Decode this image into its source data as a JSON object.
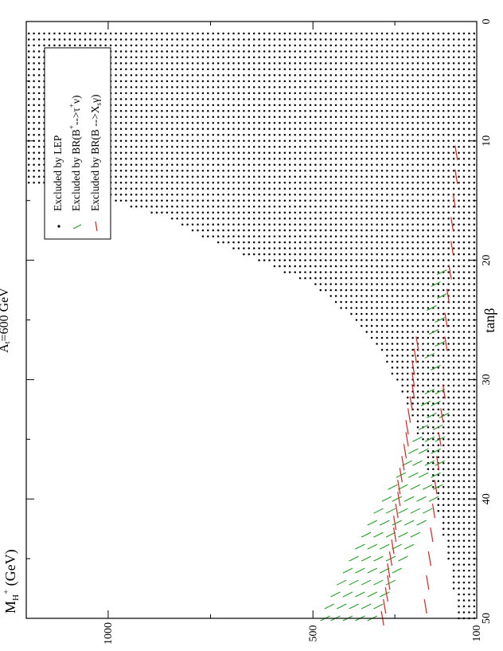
{
  "chart_data": {
    "type": "scatter",
    "orientation": "rotated-90-counterclockwise",
    "title_parts": {
      "main": "A",
      "sub": "t",
      "rest": "=600 GeV"
    },
    "xlabel": "tanβ",
    "ylabel_parts": {
      "main": "M",
      "sub": "H",
      "sup": "+",
      "rest": " (GeV)"
    },
    "xlim": [
      0,
      50
    ],
    "ylim": [
      100,
      1200
    ],
    "x_ticks": [
      "0",
      "10",
      "20",
      "30",
      "40",
      "50"
    ],
    "y_ticks": [
      "100",
      "500",
      "1000"
    ],
    "grid": false,
    "legend_position": "top-left",
    "legend": [
      {
        "key": "lep",
        "text": "Excluded by LEP"
      },
      {
        "key": "taunu",
        "text": "Excluded by BR(B",
        "sup": "+",
        "mid": "-->τ",
        "sup2": "+",
        "end": "ν)"
      },
      {
        "key": "xsgamma",
        "text": "Excluded by BR(B -->X",
        "sub": "s",
        "end": "γ)"
      }
    ],
    "series": [
      {
        "name": "Excluded by LEP",
        "key": "lep",
        "color": "#000000",
        "marker": "dot",
        "grid_step_x": 0.5,
        "grid_step_y": 12.5,
        "boundary": [
          [
            1,
            1200
          ],
          [
            13.5,
            1200
          ],
          [
            14,
            1070
          ],
          [
            15.5,
            950
          ],
          [
            16.5,
            850
          ],
          [
            18,
            770
          ],
          [
            20,
            640
          ],
          [
            22,
            500
          ],
          [
            25,
            400
          ],
          [
            28,
            330
          ],
          [
            32,
            270
          ],
          [
            36,
            230
          ],
          [
            40,
            200
          ],
          [
            44,
            175
          ],
          [
            48,
            155
          ],
          [
            50,
            150
          ]
        ]
      },
      {
        "name": "Excluded by BR(B+ -->τ+ν)",
        "key": "taunu",
        "color": "#22a022",
        "marker": "slash",
        "points": [
          [
            21,
            185
          ],
          [
            22,
            200
          ],
          [
            23,
            185
          ],
          [
            24,
            210
          ],
          [
            25,
            190
          ],
          [
            26,
            205
          ],
          [
            27,
            190
          ],
          [
            28,
            215
          ],
          [
            29,
            200
          ],
          [
            31,
            190
          ],
          [
            31,
            215
          ],
          [
            32,
            200
          ],
          [
            32,
            225
          ],
          [
            33,
            180
          ],
          [
            33,
            210
          ],
          [
            34,
            195
          ],
          [
            34,
            230
          ],
          [
            35,
            190
          ],
          [
            35,
            215
          ],
          [
            35,
            245
          ],
          [
            36,
            200
          ],
          [
            36,
            230
          ],
          [
            36,
            255
          ],
          [
            37,
            190
          ],
          [
            37,
            215
          ],
          [
            37,
            245
          ],
          [
            37,
            270
          ],
          [
            38,
            200
          ],
          [
            38,
            230
          ],
          [
            38,
            255
          ],
          [
            38,
            285
          ],
          [
            39,
            195
          ],
          [
            39,
            220
          ],
          [
            39,
            250
          ],
          [
            39,
            280
          ],
          [
            39,
            305
          ],
          [
            40,
            205
          ],
          [
            40,
            235
          ],
          [
            40,
            265
          ],
          [
            40,
            295
          ],
          [
            40,
            320
          ],
          [
            41,
            220
          ],
          [
            41,
            250
          ],
          [
            41,
            280
          ],
          [
            41,
            310
          ],
          [
            41,
            340
          ],
          [
            42,
            235
          ],
          [
            42,
            265
          ],
          [
            42,
            295
          ],
          [
            42,
            325
          ],
          [
            42,
            355
          ],
          [
            43,
            250
          ],
          [
            43,
            280
          ],
          [
            43,
            310
          ],
          [
            43,
            340
          ],
          [
            43,
            370
          ],
          [
            44,
            265
          ],
          [
            44,
            295
          ],
          [
            44,
            325
          ],
          [
            44,
            355
          ],
          [
            44,
            385
          ],
          [
            45,
            280
          ],
          [
            45,
            310
          ],
          [
            45,
            340
          ],
          [
            45,
            370
          ],
          [
            45,
            400
          ],
          [
            46,
            295
          ],
          [
            46,
            325
          ],
          [
            46,
            355
          ],
          [
            46,
            385
          ],
          [
            46,
            415
          ],
          [
            47,
            310
          ],
          [
            47,
            340
          ],
          [
            47,
            370
          ],
          [
            47,
            400
          ],
          [
            47,
            430
          ],
          [
            48,
            325
          ],
          [
            48,
            355
          ],
          [
            48,
            385
          ],
          [
            48,
            415
          ],
          [
            48,
            445
          ],
          [
            49,
            340
          ],
          [
            49,
            370
          ],
          [
            49,
            400
          ],
          [
            49,
            430
          ],
          [
            49,
            460
          ],
          [
            50,
            355
          ],
          [
            50,
            385
          ],
          [
            50,
            415
          ],
          [
            50,
            445
          ],
          [
            50,
            470
          ]
        ]
      },
      {
        "name": "Excluded by BR(B -->Xsγ)",
        "key": "xsgamma",
        "color": "#e0201c",
        "marker": "dash",
        "points": [
          [
            11,
            150
          ],
          [
            13,
            150
          ],
          [
            15,
            155
          ],
          [
            17,
            160
          ],
          [
            19,
            160
          ],
          [
            21,
            165
          ],
          [
            23,
            170
          ],
          [
            25,
            175
          ],
          [
            27,
            175
          ],
          [
            27,
            245
          ],
          [
            28,
            250
          ],
          [
            29,
            255
          ],
          [
            30,
            255
          ],
          [
            31,
            180
          ],
          [
            31,
            255
          ],
          [
            32,
            260
          ],
          [
            33,
            185
          ],
          [
            33,
            265
          ],
          [
            34,
            270
          ],
          [
            35,
            190
          ],
          [
            35,
            270
          ],
          [
            36,
            275
          ],
          [
            37,
            195
          ],
          [
            37,
            280
          ],
          [
            38,
            285
          ],
          [
            39,
            200
          ],
          [
            39,
            290
          ],
          [
            40,
            290
          ],
          [
            41,
            205
          ],
          [
            41,
            295
          ],
          [
            42,
            300
          ],
          [
            43,
            210
          ],
          [
            43,
            300
          ],
          [
            44,
            305
          ],
          [
            45,
            215
          ],
          [
            45,
            310
          ],
          [
            46,
            315
          ],
          [
            47,
            220
          ],
          [
            47,
            315
          ],
          [
            48,
            320
          ],
          [
            49,
            225
          ],
          [
            49,
            325
          ],
          [
            50,
            330
          ]
        ]
      }
    ]
  }
}
